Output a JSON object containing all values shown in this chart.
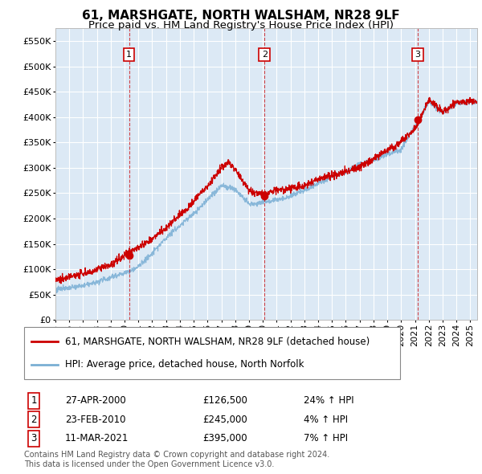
{
  "title": "61, MARSHGATE, NORTH WALSHAM, NR28 9LF",
  "subtitle": "Price paid vs. HM Land Registry's House Price Index (HPI)",
  "ylim": [
    0,
    575000
  ],
  "yticks": [
    0,
    50000,
    100000,
    150000,
    200000,
    250000,
    300000,
    350000,
    400000,
    450000,
    500000,
    550000
  ],
  "xlim_start": 1995.0,
  "xlim_end": 2025.5,
  "background_color": "#ffffff",
  "plot_bg_color": "#dce9f5",
  "grid_color": "#ffffff",
  "red_line_color": "#cc0000",
  "blue_line_color": "#7aafd4",
  "sale_marker_color": "#cc0000",
  "annotation_box_color": "#cc0000",
  "legend_label_red": "61, MARSHGATE, NORTH WALSHAM, NR28 9LF (detached house)",
  "legend_label_blue": "HPI: Average price, detached house, North Norfolk",
  "sales": [
    {
      "num": 1,
      "date_x": 2000.32,
      "price": 126500,
      "pct": "24%",
      "date_str": "27-APR-2000"
    },
    {
      "num": 2,
      "date_x": 2010.12,
      "price": 245000,
      "pct": "4%",
      "date_str": "23-FEB-2010"
    },
    {
      "num": 3,
      "date_x": 2021.19,
      "price": 395000,
      "pct": "7%",
      "date_str": "11-MAR-2021"
    }
  ],
  "footer": "Contains HM Land Registry data © Crown copyright and database right 2024.\nThis data is licensed under the Open Government Licence v3.0.",
  "title_fontsize": 11,
  "subtitle_fontsize": 9.5,
  "tick_fontsize": 8,
  "legend_fontsize": 8.5,
  "footer_fontsize": 7
}
